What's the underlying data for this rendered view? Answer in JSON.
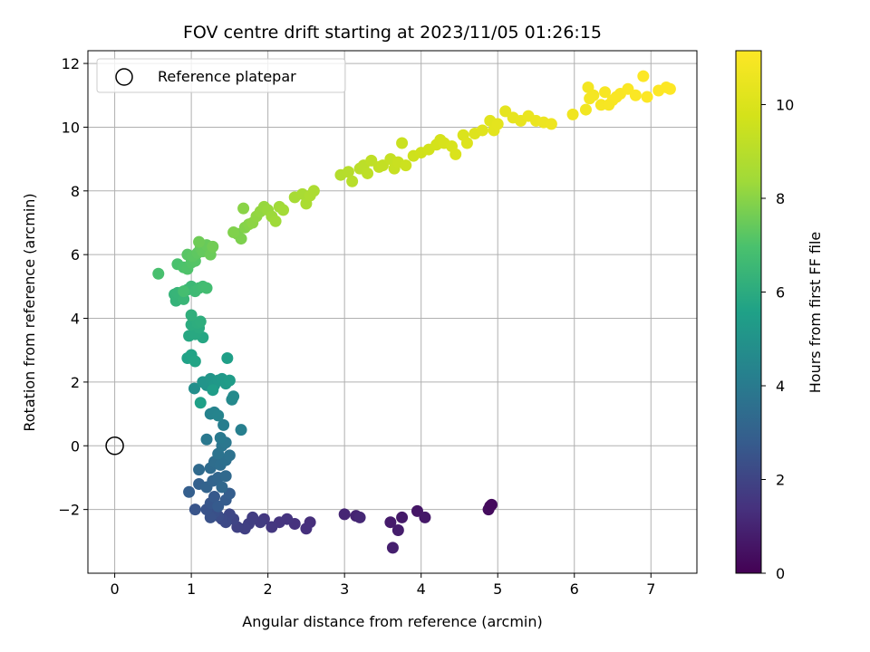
{
  "chart_data": {
    "type": "scatter",
    "title": "FOV centre drift starting at 2023/11/05 01:26:15",
    "xlabel": "Angular distance from reference (arcmin)",
    "ylabel": "Rotation from reference (arcmin)",
    "xlim": [
      -0.35,
      7.6
    ],
    "ylim": [
      -4.0,
      12.4
    ],
    "xticks": [
      0,
      1,
      2,
      3,
      4,
      5,
      6,
      7
    ],
    "xtick_labels": [
      "0",
      "1",
      "2",
      "3",
      "4",
      "5",
      "6",
      "7"
    ],
    "yticks": [
      -2,
      0,
      2,
      4,
      6,
      8,
      10,
      12
    ],
    "ytick_labels": [
      "−2",
      "0",
      "2",
      "4",
      "6",
      "8",
      "10",
      "12"
    ],
    "grid": true,
    "legend": {
      "position": "top-left",
      "entries": [
        {
          "label": "Reference platepar",
          "marker": "open-circle"
        }
      ]
    },
    "reference_point": {
      "x": 0,
      "y": 0
    },
    "colorbar": {
      "label": "Hours from first FF file",
      "colormap": "viridis",
      "range": [
        0,
        11.15
      ],
      "ticks": [
        0,
        2,
        4,
        6,
        8,
        10
      ],
      "tick_labels": [
        "0",
        "2",
        "4",
        "6",
        "8",
        "10"
      ]
    },
    "series": [
      {
        "columns": [
          "x",
          "y",
          "hours"
        ],
        "points": [
          [
            4.9,
            -1.9,
            0.2
          ],
          [
            4.88,
            -2.0,
            0.3
          ],
          [
            4.92,
            -1.85,
            0.25
          ],
          [
            3.95,
            -2.05,
            0.6
          ],
          [
            4.05,
            -2.25,
            0.65
          ],
          [
            3.75,
            -2.25,
            0.7
          ],
          [
            3.6,
            -2.4,
            0.75
          ],
          [
            3.7,
            -2.65,
            0.8
          ],
          [
            3.63,
            -3.2,
            0.85
          ],
          [
            3.15,
            -2.2,
            1.0
          ],
          [
            3.0,
            -2.15,
            1.05
          ],
          [
            3.2,
            -2.25,
            1.1
          ],
          [
            2.55,
            -2.4,
            1.3
          ],
          [
            2.5,
            -2.6,
            1.35
          ],
          [
            2.35,
            -2.45,
            1.4
          ],
          [
            2.25,
            -2.3,
            1.45
          ],
          [
            2.15,
            -2.4,
            1.5
          ],
          [
            2.05,
            -2.55,
            1.55
          ],
          [
            1.95,
            -2.3,
            1.6
          ],
          [
            1.9,
            -2.4,
            1.7
          ],
          [
            1.8,
            -2.25,
            1.75
          ],
          [
            1.75,
            -2.45,
            1.8
          ],
          [
            1.7,
            -2.6,
            1.85
          ],
          [
            1.6,
            -2.55,
            1.9
          ],
          [
            1.55,
            -2.3,
            2.0
          ],
          [
            1.5,
            -2.15,
            2.1
          ],
          [
            1.45,
            -2.4,
            2.15
          ],
          [
            1.4,
            -2.3,
            2.2
          ],
          [
            1.35,
            -2.2,
            2.3
          ],
          [
            1.3,
            -2.1,
            2.4
          ],
          [
            1.25,
            -2.25,
            2.45
          ],
          [
            1.2,
            -2.0,
            2.5
          ],
          [
            1.05,
            -2.0,
            2.55
          ],
          [
            1.25,
            -1.8,
            2.6
          ],
          [
            1.3,
            -1.6,
            2.7
          ],
          [
            1.35,
            -1.9,
            2.75
          ],
          [
            1.45,
            -1.7,
            2.8
          ],
          [
            1.5,
            -1.5,
            2.85
          ],
          [
            0.97,
            -1.45,
            2.9
          ],
          [
            1.1,
            -1.2,
            3.0
          ],
          [
            1.2,
            -1.3,
            3.05
          ],
          [
            1.28,
            -1.1,
            3.1
          ],
          [
            1.35,
            -1.0,
            3.2
          ],
          [
            1.4,
            -1.3,
            3.25
          ],
          [
            1.45,
            -0.95,
            3.3
          ],
          [
            1.1,
            -0.75,
            3.35
          ],
          [
            1.25,
            -0.7,
            3.4
          ],
          [
            1.3,
            -0.5,
            3.45
          ],
          [
            1.38,
            -0.6,
            3.5
          ],
          [
            1.45,
            -0.45,
            3.6
          ],
          [
            1.5,
            -0.3,
            3.65
          ],
          [
            1.35,
            -0.25,
            3.7
          ],
          [
            1.4,
            0.0,
            3.8
          ],
          [
            1.45,
            0.1,
            3.85
          ],
          [
            1.2,
            0.2,
            3.9
          ],
          [
            1.38,
            0.25,
            3.95
          ],
          [
            1.42,
            0.65,
            4.1
          ],
          [
            1.65,
            0.5,
            4.2
          ],
          [
            1.25,
            1.0,
            4.3
          ],
          [
            1.3,
            1.05,
            4.35
          ],
          [
            1.35,
            0.95,
            4.4
          ],
          [
            1.53,
            1.45,
            4.6
          ],
          [
            1.55,
            1.55,
            4.65
          ],
          [
            1.04,
            1.8,
            4.8
          ],
          [
            1.2,
            1.9,
            5.0
          ],
          [
            1.15,
            2.0,
            5.05
          ],
          [
            1.25,
            2.1,
            5.1
          ],
          [
            1.3,
            1.9,
            5.15
          ],
          [
            1.35,
            2.05,
            5.2
          ],
          [
            1.4,
            2.1,
            5.25
          ],
          [
            1.45,
            1.95,
            5.3
          ],
          [
            1.5,
            2.05,
            5.35
          ],
          [
            1.28,
            1.75,
            5.4
          ],
          [
            1.47,
            2.75,
            5.5
          ],
          [
            1.12,
            1.35,
            5.55
          ],
          [
            0.95,
            2.75,
            5.6
          ],
          [
            1.0,
            2.85,
            5.65
          ],
          [
            1.05,
            2.65,
            5.7
          ],
          [
            1.15,
            3.4,
            5.8
          ],
          [
            0.97,
            3.45,
            5.85
          ],
          [
            1.05,
            3.5,
            5.9
          ],
          [
            1.1,
            3.7,
            5.95
          ],
          [
            1.0,
            3.8,
            6.0
          ],
          [
            1.08,
            3.85,
            6.05
          ],
          [
            1.12,
            3.9,
            6.1
          ],
          [
            1.0,
            4.1,
            6.15
          ],
          [
            0.8,
            4.55,
            6.3
          ],
          [
            0.78,
            4.75,
            6.35
          ],
          [
            0.82,
            4.8,
            6.4
          ],
          [
            0.9,
            4.6,
            6.45
          ],
          [
            0.95,
            4.9,
            6.5
          ],
          [
            1.0,
            5.0,
            6.55
          ],
          [
            1.05,
            4.85,
            6.6
          ],
          [
            1.1,
            4.95,
            6.65
          ],
          [
            1.15,
            5.0,
            6.7
          ],
          [
            1.2,
            4.95,
            6.75
          ],
          [
            0.9,
            4.85,
            6.8
          ],
          [
            0.57,
            5.4,
            6.9
          ],
          [
            0.82,
            5.7,
            6.95
          ],
          [
            0.9,
            5.6,
            7.0
          ],
          [
            0.95,
            5.55,
            7.05
          ],
          [
            1.0,
            5.75,
            7.1
          ],
          [
            1.05,
            5.8,
            7.15
          ],
          [
            0.95,
            6.0,
            7.2
          ],
          [
            1.02,
            5.95,
            7.25
          ],
          [
            1.08,
            6.05,
            7.3
          ],
          [
            1.12,
            6.2,
            7.35
          ],
          [
            1.15,
            6.1,
            7.4
          ],
          [
            1.2,
            6.3,
            7.45
          ],
          [
            1.25,
            6.0,
            7.5
          ],
          [
            1.1,
            6.4,
            7.55
          ],
          [
            1.28,
            6.25,
            7.6
          ],
          [
            1.6,
            6.65,
            7.75
          ],
          [
            1.65,
            6.5,
            7.8
          ],
          [
            1.55,
            6.7,
            7.85
          ],
          [
            1.7,
            6.85,
            7.9
          ],
          [
            1.75,
            6.95,
            7.95
          ],
          [
            1.68,
            7.45,
            8.0
          ],
          [
            1.8,
            7.0,
            8.05
          ],
          [
            1.85,
            7.2,
            8.1
          ],
          [
            1.9,
            7.35,
            8.15
          ],
          [
            1.95,
            7.5,
            8.2
          ],
          [
            2.0,
            7.4,
            8.25
          ],
          [
            2.05,
            7.2,
            8.3
          ],
          [
            2.1,
            7.05,
            8.35
          ],
          [
            2.15,
            7.5,
            8.4
          ],
          [
            2.2,
            7.4,
            8.45
          ],
          [
            2.35,
            7.8,
            8.55
          ],
          [
            2.45,
            7.9,
            8.6
          ],
          [
            2.5,
            7.6,
            8.65
          ],
          [
            2.6,
            8.0,
            8.7
          ],
          [
            2.55,
            7.85,
            8.72
          ],
          [
            2.95,
            8.5,
            8.9
          ],
          [
            3.05,
            8.6,
            8.95
          ],
          [
            3.1,
            8.3,
            9.0
          ],
          [
            3.2,
            8.7,
            9.05
          ],
          [
            3.25,
            8.8,
            9.1
          ],
          [
            3.3,
            8.55,
            9.15
          ],
          [
            3.35,
            8.95,
            9.2
          ],
          [
            3.45,
            8.75,
            9.25
          ],
          [
            3.5,
            8.8,
            9.3
          ],
          [
            3.6,
            9.0,
            9.35
          ],
          [
            3.65,
            8.7,
            9.4
          ],
          [
            3.7,
            8.9,
            9.45
          ],
          [
            3.75,
            9.5,
            9.5
          ],
          [
            3.8,
            8.8,
            9.55
          ],
          [
            3.9,
            9.1,
            9.6
          ],
          [
            4.0,
            9.2,
            9.65
          ],
          [
            4.1,
            9.3,
            9.7
          ],
          [
            4.2,
            9.45,
            9.75
          ],
          [
            4.25,
            9.6,
            9.8
          ],
          [
            4.3,
            9.5,
            9.85
          ],
          [
            4.4,
            9.4,
            9.9
          ],
          [
            4.45,
            9.15,
            9.95
          ],
          [
            4.55,
            9.75,
            10.0
          ],
          [
            4.6,
            9.5,
            10.05
          ],
          [
            4.7,
            9.8,
            10.1
          ],
          [
            4.8,
            9.9,
            10.15
          ],
          [
            4.9,
            10.2,
            10.2
          ],
          [
            4.95,
            9.9,
            10.25
          ],
          [
            5.0,
            10.1,
            10.3
          ],
          [
            5.1,
            10.5,
            10.35
          ],
          [
            5.2,
            10.3,
            10.4
          ],
          [
            5.3,
            10.2,
            10.45
          ],
          [
            5.4,
            10.35,
            10.5
          ],
          [
            5.5,
            10.2,
            10.55
          ],
          [
            5.6,
            10.15,
            10.6
          ],
          [
            5.7,
            10.1,
            10.65
          ],
          [
            5.98,
            10.4,
            10.7
          ],
          [
            6.15,
            10.55,
            10.75
          ],
          [
            6.2,
            10.9,
            10.8
          ],
          [
            6.25,
            11.0,
            10.85
          ],
          [
            6.35,
            10.7,
            10.9
          ],
          [
            6.4,
            11.1,
            10.95
          ],
          [
            6.5,
            10.85,
            11.0
          ],
          [
            6.6,
            11.05,
            11.0
          ],
          [
            6.7,
            11.2,
            11.05
          ],
          [
            6.8,
            11.0,
            11.05
          ],
          [
            6.9,
            11.6,
            11.1
          ],
          [
            6.95,
            10.95,
            11.1
          ],
          [
            7.1,
            11.15,
            11.12
          ],
          [
            7.2,
            11.25,
            11.15
          ],
          [
            7.25,
            11.2,
            11.15
          ],
          [
            6.18,
            11.25,
            10.82
          ],
          [
            6.55,
            10.95,
            11.0
          ],
          [
            6.45,
            10.7,
            10.95
          ]
        ]
      }
    ]
  }
}
